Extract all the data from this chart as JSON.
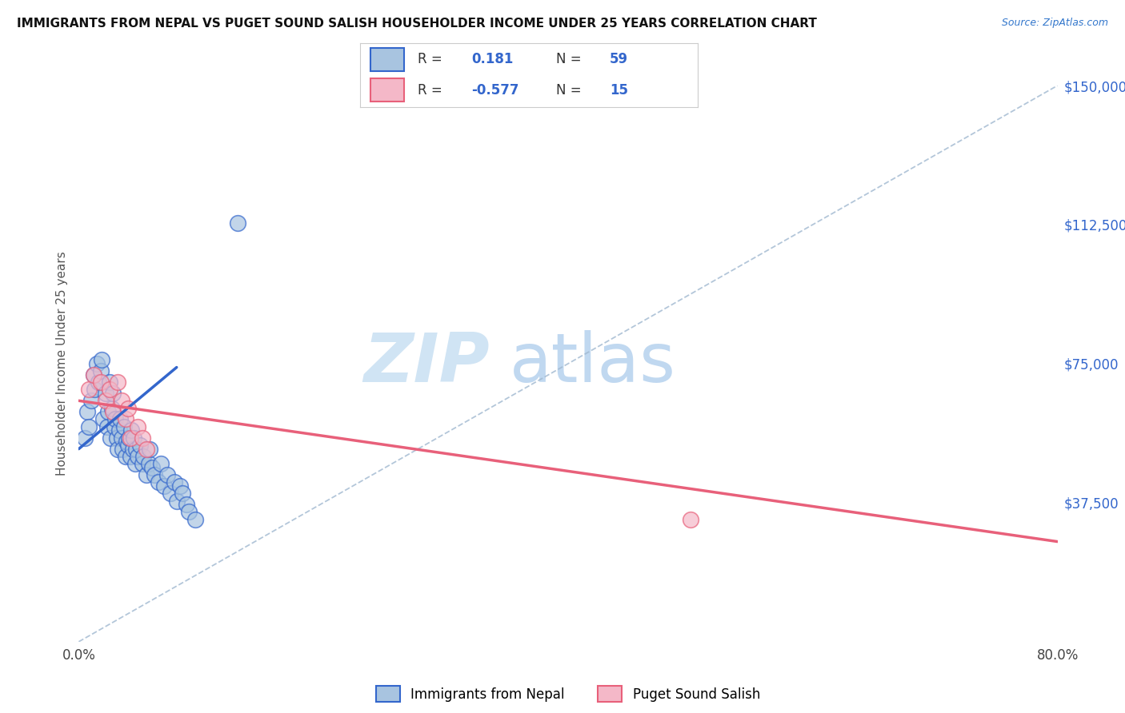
{
  "title": "IMMIGRANTS FROM NEPAL VS PUGET SOUND SALISH HOUSEHOLDER INCOME UNDER 25 YEARS CORRELATION CHART",
  "source": "Source: ZipAtlas.com",
  "ylabel": "Householder Income Under 25 years",
  "xlim": [
    0.0,
    0.8
  ],
  "ylim": [
    0,
    150000
  ],
  "xtick_labels": [
    "0.0%",
    "80.0%"
  ],
  "ytick_labels": [
    "$37,500",
    "$75,000",
    "$112,500",
    "$150,000"
  ],
  "ytick_values": [
    37500,
    75000,
    112500,
    150000
  ],
  "R_blue": 0.181,
  "N_blue": 59,
  "R_pink": -0.577,
  "N_pink": 15,
  "legend_label_blue": "Immigrants from Nepal",
  "legend_label_pink": "Puget Sound Salish",
  "blue_color": "#a8c4e0",
  "blue_line_color": "#3366cc",
  "pink_color": "#f4b8c8",
  "pink_line_color": "#e8607a",
  "diag_line_color": "#a0b8d0",
  "blue_scatter_x": [
    0.005,
    0.007,
    0.008,
    0.01,
    0.012,
    0.013,
    0.015,
    0.016,
    0.018,
    0.019,
    0.02,
    0.022,
    0.023,
    0.024,
    0.025,
    0.026,
    0.027,
    0.028,
    0.029,
    0.03,
    0.031,
    0.032,
    0.033,
    0.034,
    0.035,
    0.036,
    0.037,
    0.038,
    0.039,
    0.04,
    0.041,
    0.042,
    0.043,
    0.044,
    0.045,
    0.046,
    0.047,
    0.048,
    0.05,
    0.052,
    0.053,
    0.055,
    0.057,
    0.058,
    0.06,
    0.062,
    0.065,
    0.067,
    0.07,
    0.072,
    0.075,
    0.078,
    0.08,
    0.083,
    0.085,
    0.088,
    0.09,
    0.095,
    0.13
  ],
  "blue_scatter_y": [
    55000,
    62000,
    58000,
    65000,
    72000,
    68000,
    75000,
    70000,
    73000,
    76000,
    60000,
    67000,
    58000,
    62000,
    70000,
    55000,
    63000,
    67000,
    58000,
    60000,
    55000,
    52000,
    57000,
    60000,
    55000,
    52000,
    58000,
    50000,
    54000,
    53000,
    55000,
    50000,
    57000,
    52000,
    55000,
    48000,
    52000,
    50000,
    53000,
    48000,
    50000,
    45000,
    48000,
    52000,
    47000,
    45000,
    43000,
    48000,
    42000,
    45000,
    40000,
    43000,
    38000,
    42000,
    40000,
    37000,
    35000,
    33000,
    113000
  ],
  "pink_scatter_x": [
    0.008,
    0.012,
    0.018,
    0.022,
    0.025,
    0.028,
    0.032,
    0.035,
    0.038,
    0.04,
    0.042,
    0.048,
    0.052,
    0.055,
    0.5
  ],
  "pink_scatter_y": [
    68000,
    72000,
    70000,
    65000,
    68000,
    62000,
    70000,
    65000,
    60000,
    63000,
    55000,
    58000,
    55000,
    52000,
    33000
  ],
  "blue_line_x0": 0.0,
  "blue_line_y0": 52000,
  "blue_line_x1": 0.08,
  "blue_line_y1": 74000,
  "pink_line_x0": 0.0,
  "pink_line_y0": 65000,
  "pink_line_x1": 0.8,
  "pink_line_y1": 27000,
  "diag_line_x0": 0.0,
  "diag_line_y0": 0,
  "diag_line_x1": 0.8,
  "diag_line_y1": 150000,
  "background_color": "#ffffff",
  "grid_color": "#c8d8ec",
  "title_color": "#111111",
  "axis_label_color": "#555555",
  "ytick_color": "#3366cc",
  "xtick_color": "#444444",
  "watermark_zip_color": "#d0e4f4",
  "watermark_atlas_color": "#c0d8f0"
}
